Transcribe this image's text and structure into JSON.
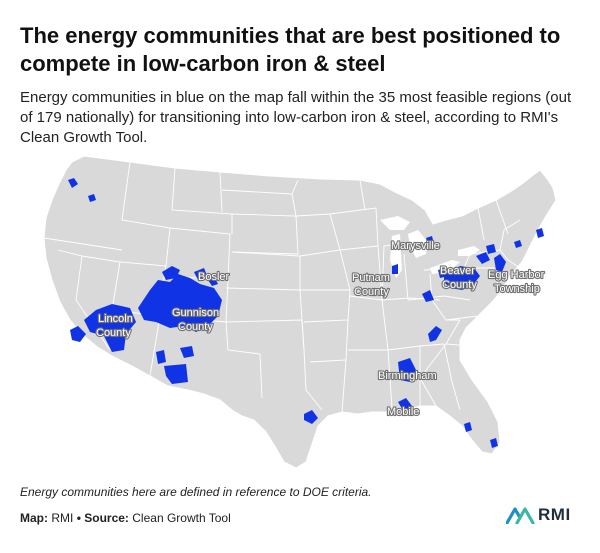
{
  "header": {
    "title": "The energy communities that are best positioned to compete in low-carbon iron & steel",
    "subtitle": "Energy communities in blue on the map fall within the 35 most feasible regions (out of 179 nationally) for transitioning into low-carbon iron & steel, according to RMI's Clean Growth Tool."
  },
  "map": {
    "base_color": "#d9d9d9",
    "border_color": "#ffffff",
    "highlight_color": "#1133e6",
    "labels": {
      "marysville": "Marysville",
      "putnam_1": "Putnam",
      "putnam_2": "County",
      "beaver_1": "Beaver",
      "beaver_2": "County",
      "eggharbor_1": "Egg Harbor",
      "eggharbor_2": "Township",
      "bosler": "Bosler",
      "lincoln_1": "Lincoln",
      "lincoln_2": "County",
      "gunnison_1": "Gunnison",
      "gunnison_2": "County",
      "birmingham": "Birmingham",
      "mobile": "Mobile"
    }
  },
  "footer": {
    "note": "Energy communities here are defined in reference to DOE criteria.",
    "map_label": "Map:",
    "map_value": "RMI",
    "separator": "•",
    "source_label": "Source:",
    "source_value": "Clean Growth Tool",
    "logo_text": "RMI"
  }
}
